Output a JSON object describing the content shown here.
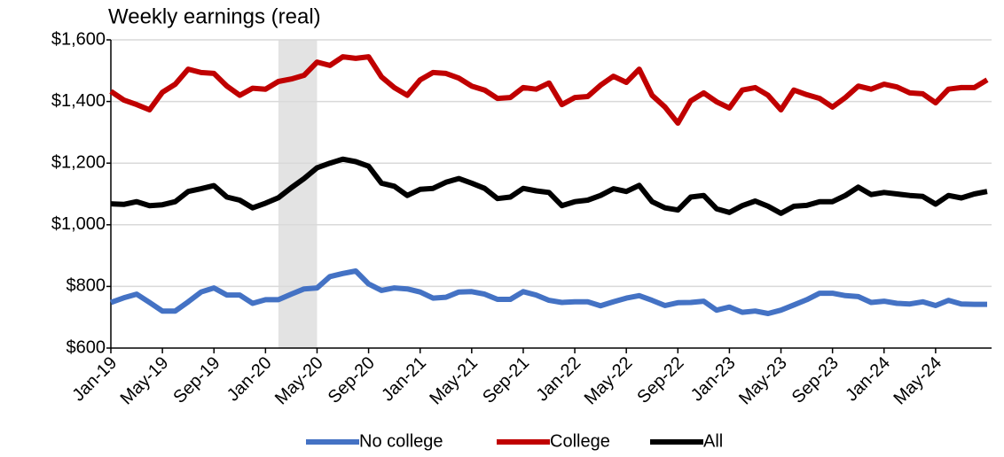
{
  "chart_data": {
    "type": "line",
    "title": "Weekly earnings (real)",
    "categories": [
      "Jan-19",
      null,
      null,
      null,
      "May-19",
      null,
      null,
      null,
      "Sep-19",
      null,
      null,
      null,
      "Jan-20",
      null,
      null,
      null,
      "May-20",
      null,
      null,
      null,
      "Sep-20",
      null,
      null,
      null,
      "Jan-21",
      null,
      null,
      null,
      "May-21",
      null,
      null,
      null,
      "Sep-21",
      null,
      null,
      null,
      "Jan-22",
      null,
      null,
      null,
      "May-22",
      null,
      null,
      null,
      "Sep-22",
      null,
      null,
      null,
      "Jan-23",
      null,
      null,
      null,
      "May-23",
      null,
      null,
      null,
      "Sep-23",
      null,
      null,
      null,
      "Jan-24",
      null,
      null,
      null,
      "May-24",
      null,
      null,
      null,
      null
    ],
    "series": [
      {
        "name": "No college",
        "color": "#4472c4",
        "values": [
          748,
          763,
          775,
          748,
          720,
          720,
          750,
          782,
          795,
          772,
          772,
          745,
          757,
          757,
          775,
          792,
          795,
          832,
          842,
          850,
          808,
          787,
          795,
          792,
          782,
          762,
          765,
          782,
          783,
          775,
          758,
          758,
          783,
          772,
          755,
          748,
          750,
          750,
          737,
          750,
          762,
          770,
          755,
          738,
          747,
          748,
          752,
          723,
          733,
          716,
          720,
          712,
          723,
          740,
          757,
          778,
          778,
          770,
          767,
          748,
          752,
          745,
          743,
          750,
          738,
          755,
          743,
          742,
          742
        ]
      },
      {
        "name": "College",
        "color": "#c00000",
        "values": [
          1433,
          1405,
          1390,
          1373,
          1430,
          1456,
          1505,
          1494,
          1491,
          1450,
          1420,
          1443,
          1440,
          1465,
          1473,
          1485,
          1528,
          1517,
          1545,
          1540,
          1545,
          1480,
          1445,
          1420,
          1470,
          1494,
          1491,
          1476,
          1450,
          1437,
          1410,
          1413,
          1445,
          1440,
          1460,
          1390,
          1413,
          1416,
          1453,
          1482,
          1462,
          1505,
          1420,
          1382,
          1330,
          1402,
          1428,
          1399,
          1379,
          1437,
          1445,
          1420,
          1373,
          1437,
          1422,
          1410,
          1382,
          1413,
          1450,
          1440,
          1456,
          1447,
          1428,
          1425,
          1396,
          1440,
          1445,
          1445,
          1470
        ]
      },
      {
        "name": "All",
        "color": "#000000",
        "values": [
          1068,
          1066,
          1075,
          1062,
          1065,
          1075,
          1108,
          1117,
          1127,
          1090,
          1080,
          1055,
          1070,
          1088,
          1120,
          1150,
          1185,
          1200,
          1213,
          1205,
          1190,
          1135,
          1125,
          1095,
          1115,
          1118,
          1138,
          1150,
          1135,
          1118,
          1085,
          1090,
          1118,
          1110,
          1105,
          1062,
          1075,
          1080,
          1095,
          1117,
          1108,
          1128,
          1075,
          1055,
          1048,
          1090,
          1095,
          1052,
          1040,
          1062,
          1077,
          1060,
          1037,
          1060,
          1063,
          1075,
          1075,
          1095,
          1122,
          1098,
          1105,
          1100,
          1095,
          1092,
          1067,
          1095,
          1087,
          1100,
          1108
        ]
      }
    ],
    "shade": [
      13,
      16
    ],
    "shade_color": "#e3e3e3",
    "ylim": [
      600,
      1600
    ],
    "yticks": [
      {
        "value": 600,
        "label": "$600"
      },
      {
        "value": 800,
        "label": "$800"
      },
      {
        "value": 1000,
        "label": "$1,000"
      },
      {
        "value": 1200,
        "label": "$1,200"
      },
      {
        "value": 1400,
        "label": "$1,400"
      },
      {
        "value": 1600,
        "label": "$1,600"
      }
    ],
    "grid": true,
    "legend": "bottom"
  }
}
